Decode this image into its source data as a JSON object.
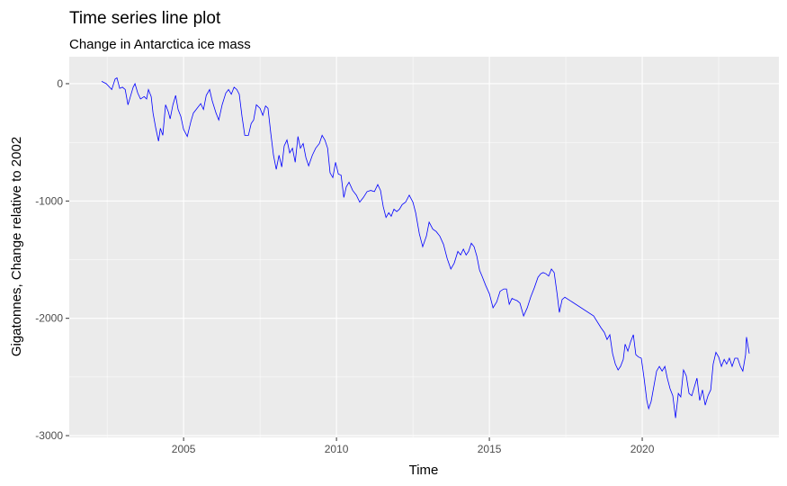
{
  "chart_data": {
    "type": "line",
    "title": "Time series line plot",
    "subtitle": "Change in Antarctica ice mass",
    "x_label": "Time",
    "y_label": "Gigatonnes, Change relative to 2002",
    "xlim": [
      2001.26,
      2024.47
    ],
    "ylim": [
      -3015,
      230
    ],
    "xticks": [
      2005,
      2010,
      2015,
      2020
    ],
    "yticks": [
      -3000,
      -2000,
      -1000,
      0
    ],
    "xminor_ticks": [
      2002.5,
      2007.5,
      2012.5,
      2017.5,
      2022.5
    ],
    "yminor_ticks": [
      -2500,
      -1500,
      -500
    ],
    "grid": true,
    "series": [
      {
        "color": "#0000ff",
        "x": [
          2002.32,
          2002.47,
          2002.65,
          2002.76,
          2002.82,
          2002.91,
          2003.0,
          2003.09,
          2003.18,
          2003.26,
          2003.35,
          2003.41,
          2003.5,
          2003.59,
          2003.71,
          2003.79,
          2003.85,
          2003.94,
          2004.0,
          2004.09,
          2004.18,
          2004.24,
          2004.32,
          2004.41,
          2004.5,
          2004.56,
          2004.65,
          2004.74,
          2004.82,
          2004.91,
          2005.0,
          2005.12,
          2005.24,
          2005.32,
          2005.44,
          2005.56,
          2005.65,
          2005.74,
          2005.85,
          2005.94,
          2006.06,
          2006.15,
          2006.26,
          2006.38,
          2006.47,
          2006.56,
          2006.65,
          2006.74,
          2006.82,
          2006.91,
          2007.0,
          2007.12,
          2007.21,
          2007.29,
          2007.38,
          2007.5,
          2007.59,
          2007.68,
          2007.76,
          2007.85,
          2007.94,
          2008.03,
          2008.12,
          2008.21,
          2008.29,
          2008.38,
          2008.47,
          2008.56,
          2008.65,
          2008.74,
          2008.82,
          2008.91,
          2009.0,
          2009.09,
          2009.21,
          2009.32,
          2009.44,
          2009.53,
          2009.62,
          2009.71,
          2009.79,
          2009.88,
          2009.97,
          2010.06,
          2010.15,
          2010.24,
          2010.32,
          2010.41,
          2010.53,
          2010.65,
          2010.76,
          2010.88,
          2011.0,
          2011.12,
          2011.24,
          2011.35,
          2011.44,
          2011.53,
          2011.62,
          2011.71,
          2011.79,
          2011.88,
          2011.97,
          2012.06,
          2012.15,
          2012.26,
          2012.38,
          2012.5,
          2012.59,
          2012.71,
          2012.82,
          2012.94,
          2013.03,
          2013.15,
          2013.26,
          2013.38,
          2013.5,
          2013.62,
          2013.74,
          2013.85,
          2013.97,
          2014.06,
          2014.15,
          2014.24,
          2014.32,
          2014.41,
          2014.5,
          2014.59,
          2014.68,
          2014.76,
          2014.88,
          2015.0,
          2015.12,
          2015.24,
          2015.35,
          2015.47,
          2015.56,
          2015.65,
          2015.74,
          2015.82,
          2015.91,
          2016.0,
          2016.12,
          2016.24,
          2016.35,
          2016.47,
          2016.59,
          2016.68,
          2016.76,
          2016.85,
          2016.94,
          2017.03,
          2017.12,
          2017.21,
          2017.29,
          2017.38,
          2017.47,
          2018.41,
          2018.65,
          2018.76,
          2018.85,
          2018.94,
          2019.03,
          2019.12,
          2019.21,
          2019.29,
          2019.38,
          2019.44,
          2019.53,
          2019.62,
          2019.71,
          2019.79,
          2019.88,
          2019.97,
          2020.06,
          2020.15,
          2020.21,
          2020.29,
          2020.38,
          2020.47,
          2020.56,
          2020.65,
          2020.74,
          2020.82,
          2020.91,
          2021.0,
          2021.09,
          2021.18,
          2021.26,
          2021.35,
          2021.44,
          2021.53,
          2021.62,
          2021.71,
          2021.79,
          2021.88,
          2021.97,
          2022.06,
          2022.15,
          2022.24,
          2022.32,
          2022.41,
          2022.5,
          2022.59,
          2022.68,
          2022.76,
          2022.85,
          2022.94,
          2023.03,
          2023.12,
          2023.21,
          2023.29,
          2023.38,
          2023.41,
          2023.5
        ],
        "values": [
          20,
          0,
          -50,
          40,
          50,
          -40,
          -30,
          -50,
          -180,
          -110,
          -30,
          0,
          -80,
          -130,
          -110,
          -130,
          -50,
          -110,
          -250,
          -380,
          -490,
          -380,
          -440,
          -180,
          -240,
          -300,
          -180,
          -100,
          -220,
          -280,
          -390,
          -450,
          -320,
          -250,
          -210,
          -170,
          -220,
          -100,
          -50,
          -150,
          -250,
          -310,
          -180,
          -80,
          -50,
          -90,
          -30,
          -50,
          -90,
          -280,
          -440,
          -440,
          -340,
          -310,
          -180,
          -210,
          -270,
          -190,
          -210,
          -420,
          -610,
          -730,
          -610,
          -710,
          -530,
          -480,
          -590,
          -550,
          -670,
          -450,
          -550,
          -510,
          -630,
          -700,
          -610,
          -550,
          -510,
          -440,
          -480,
          -550,
          -760,
          -800,
          -670,
          -770,
          -780,
          -970,
          -880,
          -840,
          -910,
          -950,
          -1010,
          -970,
          -920,
          -910,
          -920,
          -860,
          -910,
          -1050,
          -1140,
          -1100,
          -1130,
          -1070,
          -1090,
          -1070,
          -1030,
          -1010,
          -950,
          -1010,
          -1100,
          -1280,
          -1390,
          -1300,
          -1180,
          -1240,
          -1260,
          -1300,
          -1370,
          -1490,
          -1580,
          -1530,
          -1430,
          -1460,
          -1410,
          -1460,
          -1430,
          -1360,
          -1390,
          -1470,
          -1590,
          -1640,
          -1720,
          -1790,
          -1910,
          -1860,
          -1770,
          -1750,
          -1750,
          -1880,
          -1830,
          -1840,
          -1850,
          -1870,
          -1980,
          -1910,
          -1820,
          -1740,
          -1650,
          -1620,
          -1610,
          -1620,
          -1640,
          -1580,
          -1610,
          -1780,
          -1950,
          -1840,
          -1820,
          -1980,
          -2080,
          -2120,
          -2180,
          -2140,
          -2300,
          -2390,
          -2440,
          -2410,
          -2350,
          -2220,
          -2280,
          -2200,
          -2140,
          -2310,
          -2330,
          -2340,
          -2510,
          -2700,
          -2770,
          -2710,
          -2580,
          -2450,
          -2410,
          -2450,
          -2410,
          -2510,
          -2600,
          -2660,
          -2850,
          -2640,
          -2670,
          -2440,
          -2490,
          -2640,
          -2660,
          -2580,
          -2510,
          -2700,
          -2610,
          -2740,
          -2660,
          -2610,
          -2390,
          -2290,
          -2330,
          -2410,
          -2350,
          -2390,
          -2340,
          -2410,
          -2340,
          -2340,
          -2410,
          -2450,
          -2310,
          -2160,
          -2300
        ]
      }
    ]
  }
}
